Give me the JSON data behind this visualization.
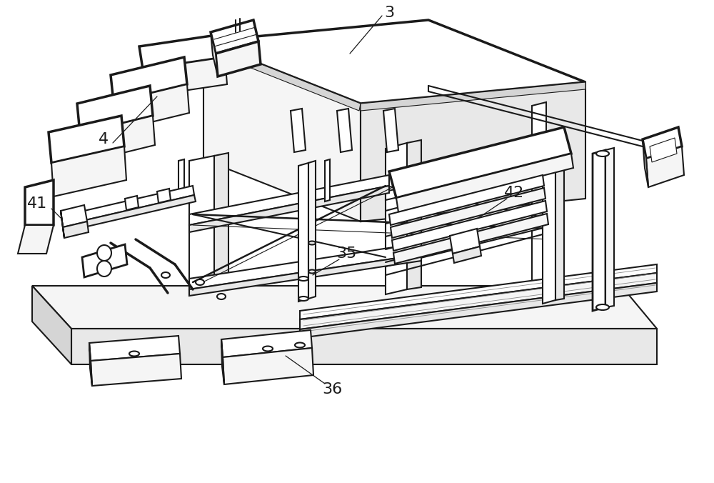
{
  "background_color": "#ffffff",
  "line_color": "#1a1a1a",
  "lw": 1.5,
  "lw_thick": 2.5,
  "fill_white": "#ffffff",
  "fill_light": "#f5f5f5",
  "fill_mid": "#e8e8e8",
  "fill_dark": "#d5d5d5",
  "label_fontsize": 14,
  "fig_width": 10.0,
  "fig_height": 6.76
}
